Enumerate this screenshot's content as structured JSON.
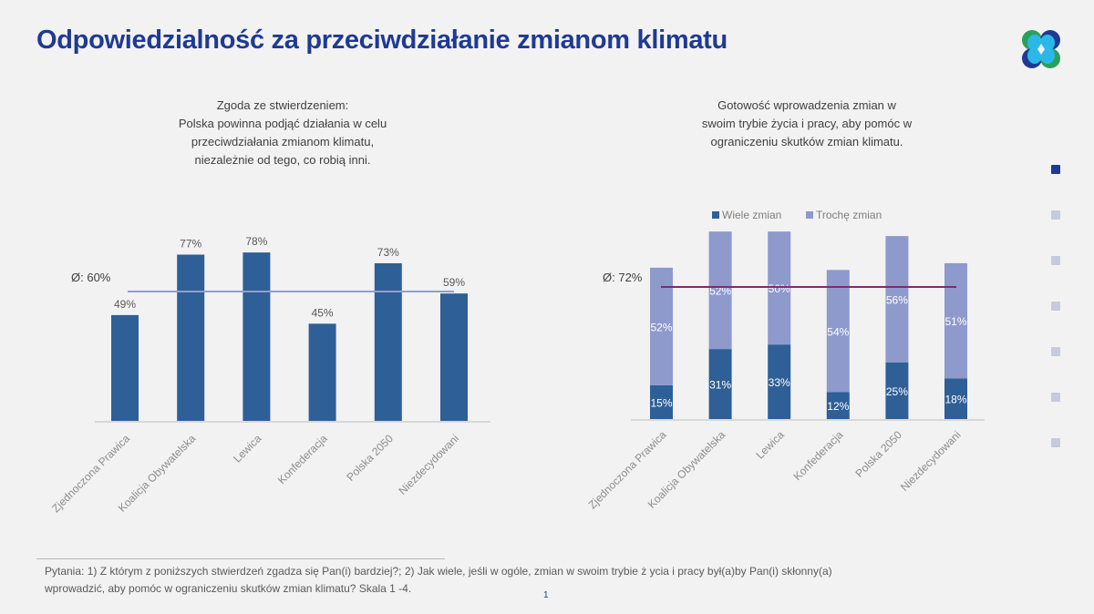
{
  "slide": {
    "title": "Odpowiedzialność za przeciwdziałanie zmianom klimatu",
    "logo_icon": "four-petal-logo-icon",
    "page_number": "1",
    "footnote_line1": "Pytania: 1) Z którym z poniższych stwierdzeń zgadza się Pan(i) bardziej?; 2) Jak wiele, jeśli w ogóle, zmian w swoim trybie ż     ycia i pracy był(a)by Pan(i) skłonny(a)",
    "footnote_line2": "wprowadzić, aby pomóc w ograniczeniu skutków zmian klimatu? Skala 1  -4.",
    "nav": {
      "count": 7,
      "active_index": 0
    },
    "colors": {
      "title": "#1f3a93",
      "bar_dark": "#2e5f96",
      "bar_light": "#8e9acc",
      "avg_line_left": "#8f9fd0",
      "avg_line_right": "#7a2e6e"
    }
  },
  "chart_data": [
    {
      "type": "bar",
      "title_lines": [
        "Zgoda ze stwierdzeniem:",
        "Polska powinna podjąć działania w celu",
        "przeciwdziałania zmianom klimatu,",
        "niezależnie od tego, co robią inni."
      ],
      "categories": [
        "Zjednoczona Prawica",
        "Koalicja Obywatelska",
        "Lewica",
        "Konfederacja",
        "Polska 2050",
        "Niezdecydowani"
      ],
      "values": [
        49,
        77,
        78,
        45,
        73,
        59
      ],
      "value_labels": [
        "49%",
        "77%",
        "78%",
        "45%",
        "73%",
        "59%"
      ],
      "average": 60,
      "average_label": "Ø: 60%",
      "ylim": [
        0,
        100
      ],
      "xlabel": "",
      "ylabel": "",
      "grid": false
    },
    {
      "type": "bar",
      "stacked": true,
      "title_lines": [
        "Gotowość wprowadzenia zmian w",
        "swoim trybie życia i pracy, aby pomóc w",
        "ograniczeniu skutków zmian klimatu."
      ],
      "categories": [
        "Zjednoczona Prawica",
        "Koalicja Obywatelska",
        "Lewica",
        "Konfederacja",
        "Polska 2050",
        "Niezdecydowani"
      ],
      "series": [
        {
          "name": "Wiele zmian",
          "values": [
            15,
            31,
            33,
            12,
            25,
            18
          ],
          "labels": [
            "15%",
            "31%",
            "33%",
            "12%",
            "25%",
            "18%"
          ]
        },
        {
          "name": "Trochę zmian",
          "values": [
            52,
            52,
            50,
            54,
            56,
            51
          ],
          "labels": [
            "52%",
            "52%",
            "50%",
            "54%",
            "56%",
            "51%"
          ]
        }
      ],
      "average": 72,
      "average_label": "Ø: 72%",
      "legend": "top-center",
      "ylim": [
        0,
        100
      ],
      "xlabel": "",
      "ylabel": "",
      "grid": false
    }
  ]
}
